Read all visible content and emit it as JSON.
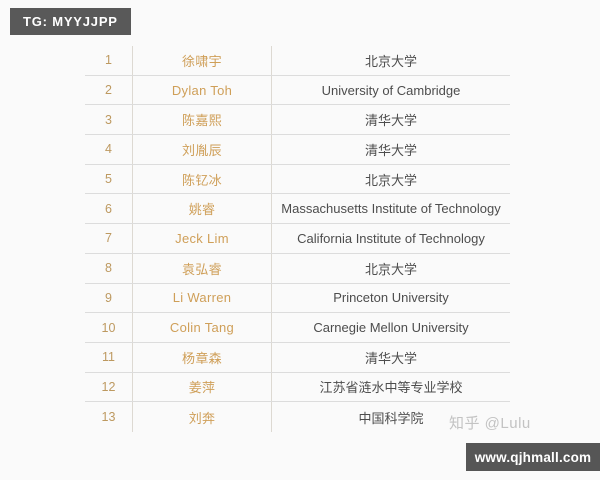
{
  "badges": {
    "top_left": "TG: MYYJJPP",
    "bottom_right": "www.qjhmall.com"
  },
  "watermark": "知乎 @Lulu",
  "colors": {
    "name_gold": "#cf9f58",
    "rank_gold": "#bd9960",
    "school_text": "#4d4d4d",
    "badge_bg": "#595959",
    "row_line": "#dcdcdc"
  },
  "table": {
    "rows": [
      {
        "rank": "1",
        "name": "徐啸宇",
        "school": "北京大学"
      },
      {
        "rank": "2",
        "name": "Dylan Toh",
        "school": "University of Cambridge"
      },
      {
        "rank": "3",
        "name": "陈嘉熙",
        "school": "清华大学"
      },
      {
        "rank": "4",
        "name": "刘胤辰",
        "school": "清华大学"
      },
      {
        "rank": "5",
        "name": "陈钇冰",
        "school": "北京大学"
      },
      {
        "rank": "6",
        "name": "姚睿",
        "school": "Massachusetts Institute of Technology"
      },
      {
        "rank": "7",
        "name": "Jeck Lim",
        "school": "California Institute of Technology"
      },
      {
        "rank": "8",
        "name": "袁弘睿",
        "school": "北京大学"
      },
      {
        "rank": "9",
        "name": "Li Warren",
        "school": "Princeton University"
      },
      {
        "rank": "10",
        "name": "Colin Tang",
        "school": "Carnegie Mellon University"
      },
      {
        "rank": "11",
        "name": "杨章森",
        "school": "清华大学"
      },
      {
        "rank": "12",
        "name": "姜萍",
        "school": "江苏省涟水中等专业学校"
      },
      {
        "rank": "13",
        "name": "刘奔",
        "school": "中国科学院"
      }
    ]
  }
}
